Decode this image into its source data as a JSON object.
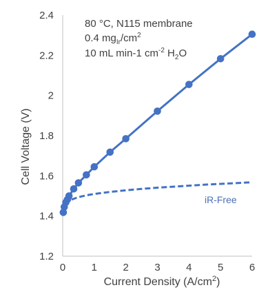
{
  "chart_data": {
    "type": "line",
    "xlabel_main": "Current Density (A/cm",
    "xlabel_sup": "2",
    "xlabel_end": ")",
    "ylabel": "Cell Voltage (V)",
    "xlim": [
      0,
      6
    ],
    "ylim": [
      1.2,
      2.4
    ],
    "x_ticks": [
      "0",
      "1",
      "2",
      "3",
      "4",
      "5",
      "6"
    ],
    "y_ticks": [
      "1.2",
      "1.4",
      "1.6",
      "1.8",
      "2",
      "2.2",
      "2.4"
    ],
    "annotation": {
      "line1": "80 °C, N115 membrane",
      "line2_a": "0.4 mg",
      "line2_sub": "Ir",
      "line2_b": "/cm",
      "line2_sup": "2",
      "line3_a": "10 mL min-1 cm",
      "line3_sup": "-2",
      "line3_b": " H",
      "line3_sub": "2",
      "line3_c": "O"
    },
    "series": [
      {
        "style": "solid-markers",
        "color": "#4472c4",
        "x": [
          0.02,
          0.05,
          0.1,
          0.15,
          0.2,
          0.35,
          0.5,
          0.75,
          1.0,
          1.5,
          2.0,
          3.0,
          4.0,
          5.0,
          6.0
        ],
        "y": [
          1.418,
          1.445,
          1.468,
          1.482,
          1.5,
          1.535,
          1.565,
          1.605,
          1.645,
          1.718,
          1.785,
          1.922,
          2.055,
          2.183,
          2.305
        ]
      },
      {
        "name": "iR-Free",
        "style": "dashed",
        "color": "#4472c4",
        "x": [
          0.02,
          0.05,
          0.1,
          0.2,
          0.3,
          0.5,
          0.75,
          1.0,
          1.5,
          2.0,
          2.5,
          3.0,
          3.5,
          4.0,
          4.5,
          5.0,
          5.5,
          6.0
        ],
        "y": [
          1.415,
          1.44,
          1.458,
          1.474,
          1.483,
          1.494,
          1.503,
          1.51,
          1.52,
          1.528,
          1.535,
          1.541,
          1.546,
          1.551,
          1.556,
          1.56,
          1.564,
          1.568
        ]
      }
    ]
  }
}
